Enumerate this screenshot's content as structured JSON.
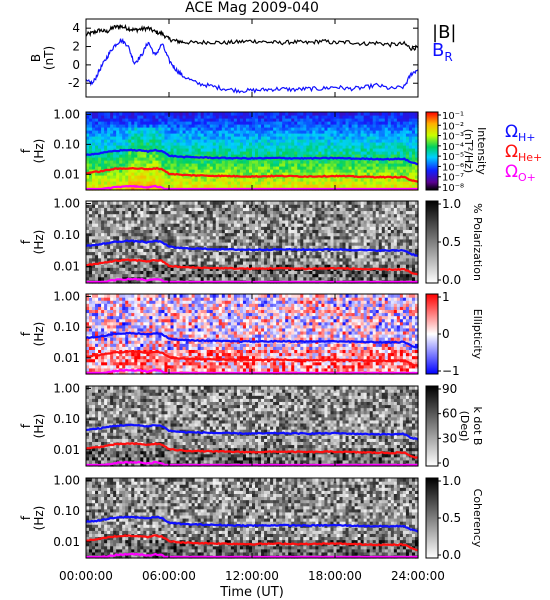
{
  "title": "ACE Mag 2009-040",
  "xlabel": "Time (UT)",
  "xticks": [
    "00:00:00",
    "06:00:00",
    "12:00:00",
    "18:00:00",
    "24:00:00"
  ],
  "xrange_hours": [
    0,
    24
  ],
  "freq_ticks": [
    "1.00",
    "0.10",
    "0.01"
  ],
  "freq_ylabel": "f",
  "freq_yunit": "(Hz)",
  "freq_range_hz": [
    0.003,
    1.2
  ],
  "freq_scale": "log",
  "gyro_legend": [
    {
      "symbol": "Ω",
      "sub": "H+",
      "color": "#1010ff"
    },
    {
      "symbol": "Ω",
      "sub": "He+",
      "color": "#ff1010"
    },
    {
      "symbol": "Ω",
      "sub": "O+",
      "color": "#ff00ff"
    }
  ],
  "colors": {
    "b_total": "#000000",
    "b_r": "#1010ff",
    "h_plus": "#1010ff",
    "he_plus": "#ff1010",
    "o_plus": "#ff00ff"
  },
  "chart_data": [
    {
      "type": "line",
      "ylabel": "B",
      "yunit": "(nT)",
      "ylim": [
        -3.5,
        5
      ],
      "yticks": [
        "4",
        "2",
        "0",
        "-2"
      ],
      "series": [
        {
          "name": "|B|",
          "x": [
            0,
            0.5,
            1,
            1.5,
            2,
            2.5,
            3,
            3.5,
            4,
            4.5,
            5,
            5.5,
            6,
            6.5,
            7,
            8,
            9,
            10,
            11,
            12,
            13,
            14,
            15,
            16,
            17,
            18,
            19,
            20,
            21,
            22,
            23,
            23.5,
            24
          ],
          "values": [
            3.3,
            3.5,
            3.8,
            3.6,
            4.1,
            4.2,
            4.0,
            3.8,
            3.9,
            4.0,
            3.6,
            3.4,
            2.8,
            2.6,
            2.5,
            2.4,
            2.5,
            2.4,
            2.5,
            2.6,
            2.5,
            2.4,
            2.5,
            2.4,
            2.6,
            2.4,
            2.5,
            2.3,
            2.4,
            2.2,
            2.3,
            1.8,
            1.9
          ]
        },
        {
          "name": "B",
          "subscript": "R",
          "x": [
            0,
            0.5,
            1,
            1.5,
            2,
            2.5,
            3,
            3.5,
            4,
            4.5,
            5,
            5.5,
            6,
            6.5,
            7,
            8,
            9,
            10,
            11,
            12,
            13,
            14,
            15,
            16,
            17,
            18,
            19,
            20,
            21,
            22,
            23,
            23.5,
            24
          ],
          "values": [
            -1.8,
            -2.0,
            -0.5,
            0.8,
            2.0,
            2.7,
            2.2,
            0.2,
            1.0,
            2.5,
            1.0,
            2.3,
            0.5,
            -0.5,
            -1.2,
            -2.0,
            -2.3,
            -2.6,
            -2.8,
            -2.8,
            -2.7,
            -2.6,
            -2.7,
            -2.6,
            -2.6,
            -2.4,
            -2.6,
            -2.5,
            -2.2,
            -2.6,
            -2.4,
            -1.0,
            -0.5
          ]
        }
      ]
    },
    {
      "type": "heatmap",
      "quantity": "Intensity",
      "colorbar_label": "Intensity",
      "colorbar_unit": "(nT²/Hz)",
      "colorbar_ticks": [
        "10⁻¹",
        "10⁻²",
        "10⁻³",
        "10⁻⁴",
        "10⁻⁵",
        "10⁻⁶",
        "10⁻⁷",
        "10⁻⁸"
      ],
      "colorbar_range": [
        1e-08,
        0.1
      ],
      "colormap": "rainbow"
    },
    {
      "type": "heatmap",
      "quantity": "% Polarization",
      "colorbar_label": "% Polarization",
      "colorbar_ticks": [
        "1.0",
        "0.5",
        "0.0"
      ],
      "colorbar_range": [
        0,
        1
      ],
      "colormap": "gray"
    },
    {
      "type": "heatmap",
      "quantity": "Ellipticity",
      "colorbar_label": "Ellipticity",
      "colorbar_ticks": [
        "1",
        "0",
        "−1"
      ],
      "colorbar_range": [
        -1,
        1
      ],
      "colormap": "blue-white-red"
    },
    {
      "type": "heatmap",
      "quantity": "k dot B",
      "colorbar_label": "k dot B",
      "colorbar_unit": "(Deg)",
      "colorbar_ticks": [
        "90",
        "60",
        "30",
        "0"
      ],
      "colorbar_range": [
        0,
        90
      ],
      "colormap": "gray"
    },
    {
      "type": "heatmap",
      "quantity": "Coherency",
      "colorbar_label": "Coherency",
      "colorbar_ticks": [
        "1.0",
        "0.5",
        "0.0"
      ],
      "colorbar_range": [
        0,
        1
      ],
      "colormap": "gray"
    }
  ],
  "gyrofrequency_lines": {
    "x_hours": [
      0,
      1,
      2,
      3,
      4,
      4.5,
      5,
      5.5,
      6,
      7,
      8,
      10,
      12,
      14,
      16,
      18,
      20,
      22,
      23,
      23.5,
      24
    ],
    "h_plus_hz": [
      0.045,
      0.05,
      0.06,
      0.065,
      0.062,
      0.058,
      0.065,
      0.06,
      0.042,
      0.038,
      0.037,
      0.035,
      0.034,
      0.035,
      0.034,
      0.035,
      0.033,
      0.032,
      0.033,
      0.025,
      0.022
    ],
    "he_plus_hz": [
      0.011,
      0.0125,
      0.015,
      0.016,
      0.0155,
      0.0145,
      0.016,
      0.015,
      0.0105,
      0.0095,
      0.0092,
      0.0088,
      0.0085,
      0.0088,
      0.0085,
      0.0088,
      0.0083,
      0.008,
      0.0082,
      0.0063,
      0.0055
    ],
    "o_plus_hz": [
      0.0028,
      0.0031,
      0.0037,
      0.004,
      0.0039,
      0.0036,
      0.004,
      0.0037,
      0.0026,
      0.0024,
      0.0023,
      0.0022,
      0.0021,
      0.0022,
      0.0021,
      0.0022,
      0.0021,
      0.002,
      0.0021,
      0.0016,
      0.0014
    ]
  }
}
